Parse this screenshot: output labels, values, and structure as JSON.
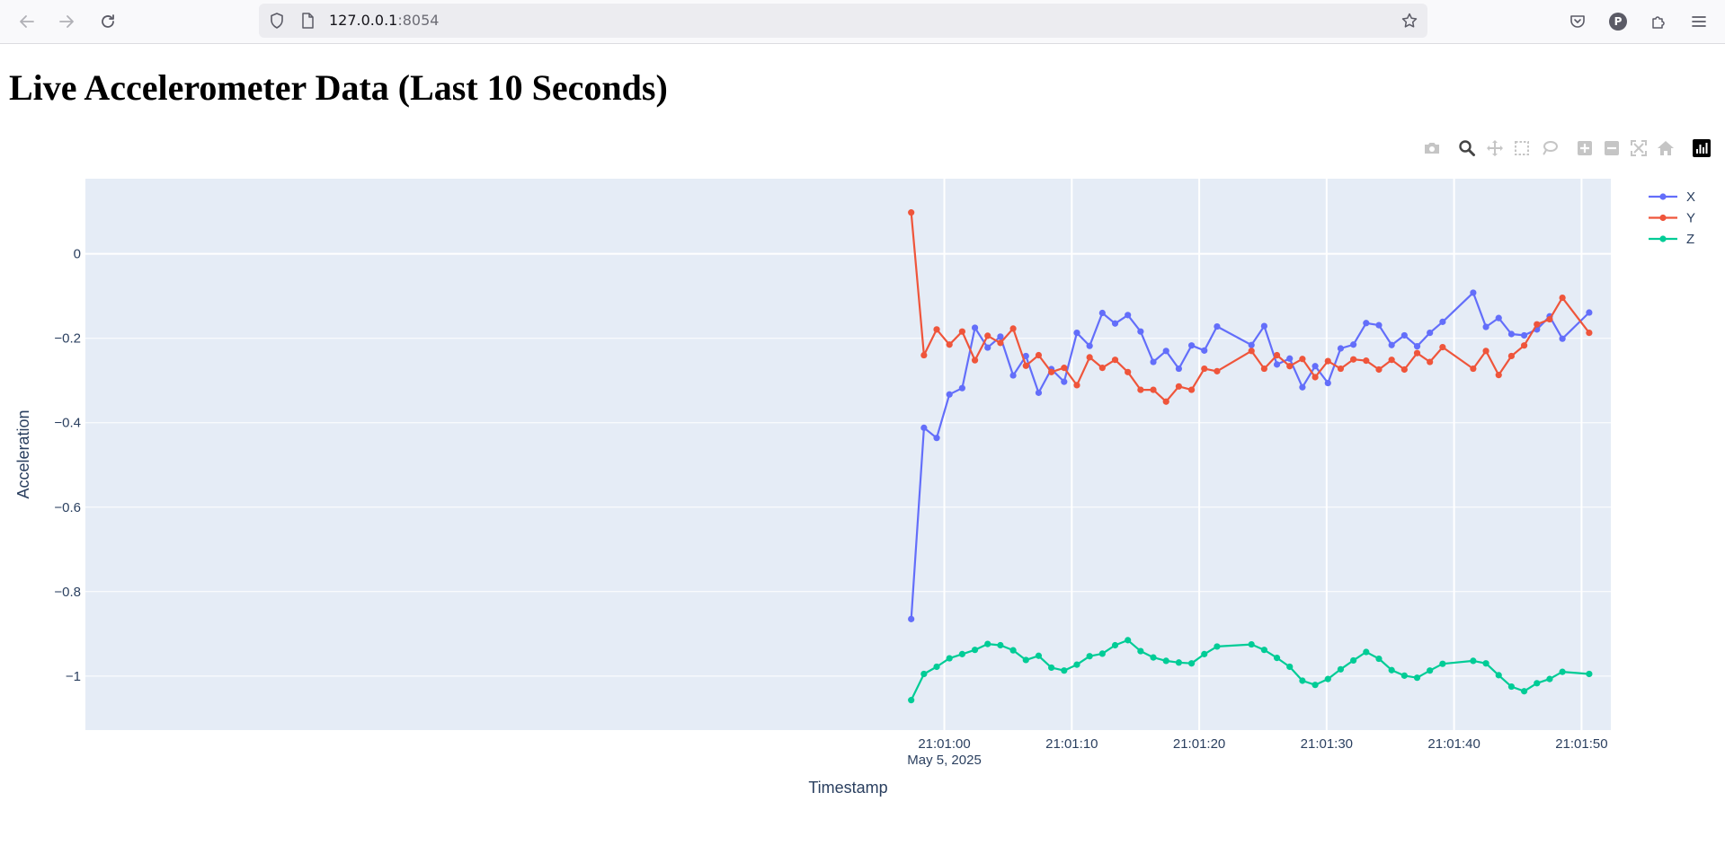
{
  "browser": {
    "url_host": "127.0.0.1",
    "url_port": ":8054",
    "icons": [
      "back-arrow-icon",
      "forward-arrow-icon",
      "reload-icon",
      "shield-icon",
      "page-icon",
      "star-icon",
      "pocket-icon",
      "account-icon",
      "extensions-icon",
      "menu-icon"
    ],
    "account_letter": "P"
  },
  "page": {
    "title": "Live Accelerometer Data (Last 10 Seconds)"
  },
  "modebar": {
    "icons": [
      "camera-icon",
      "zoom-icon",
      "pan-icon",
      "box-select-icon",
      "lasso-icon",
      "zoom-in-icon",
      "zoom-out-icon",
      "autoscale-icon",
      "reset-axes-icon",
      "plotly-logo-icon"
    ]
  },
  "colors": {
    "plot_bg": "#e5ecf6",
    "grid": "#ffffff",
    "axis_text": "#2a3f5f",
    "X": "#636efa",
    "Y": "#ef553b",
    "Z": "#00cc96"
  },
  "chart_data": {
    "type": "line",
    "title": "",
    "xlabel": "Timestamp",
    "ylabel": "Acceleration",
    "x_date": "May 5, 2025",
    "xlim": [
      "20:59:52.6",
      "21:01:52.3"
    ],
    "ylim": [
      -1.128,
      0.178
    ],
    "xticks": [
      "21:01:00",
      "21:01:10",
      "21:01:20",
      "21:01:30",
      "21:01:40",
      "21:01:50"
    ],
    "x_tick_sub": "May 5, 2025",
    "yticks": [
      0,
      -0.2,
      -0.4,
      -0.6,
      -0.8,
      -1
    ],
    "ytick_labels": [
      "0",
      "−0.2",
      "−0.4",
      "−0.6",
      "−0.8",
      "−1"
    ],
    "grid": true,
    "legend_position": "top-right",
    "x": [
      "21:00:57.4",
      "21:00:58.4",
      "21:00:59.4",
      "21:01:00.4",
      "21:01:01.4",
      "21:01:02.4",
      "21:01:03.4",
      "21:01:04.4",
      "21:01:05.4",
      "21:01:06.4",
      "21:01:07.4",
      "21:01:08.4",
      "21:01:09.4",
      "21:01:10.4",
      "21:01:11.4",
      "21:01:12.4",
      "21:01:13.4",
      "21:01:14.4",
      "21:01:15.4",
      "21:01:16.4",
      "21:01:17.4",
      "21:01:18.4",
      "21:01:19.4",
      "21:01:20.4",
      "21:01:21.4",
      "21:01:24.1",
      "21:01:25.1",
      "21:01:26.1",
      "21:01:27.1",
      "21:01:28.1",
      "21:01:29.1",
      "21:01:30.1",
      "21:01:31.1",
      "21:01:32.1",
      "21:01:33.1",
      "21:01:34.1",
      "21:01:35.1",
      "21:01:36.1",
      "21:01:37.1",
      "21:01:38.1",
      "21:01:39.1",
      "21:01:41.5",
      "21:01:42.5",
      "21:01:43.5",
      "21:01:44.5",
      "21:01:45.5",
      "21:01:46.5",
      "21:01:47.5",
      "21:01:48.5",
      "21:01:50.6"
    ],
    "series": [
      {
        "name": "X",
        "values": [
          -0.865,
          -0.412,
          -0.436,
          -0.333,
          -0.318,
          -0.175,
          -0.222,
          -0.196,
          -0.288,
          -0.242,
          -0.329,
          -0.273,
          -0.303,
          -0.187,
          -0.218,
          -0.14,
          -0.165,
          -0.145,
          -0.184,
          -0.256,
          -0.23,
          -0.272,
          -0.217,
          -0.229,
          -0.172,
          -0.216,
          -0.171,
          -0.262,
          -0.248,
          -0.316,
          -0.266,
          -0.306,
          -0.224,
          -0.215,
          -0.164,
          -0.169,
          -0.216,
          -0.193,
          -0.219,
          -0.187,
          -0.161,
          -0.092,
          -0.173,
          -0.152,
          -0.19,
          -0.193,
          -0.179,
          -0.148,
          -0.201,
          -0.139
        ]
      },
      {
        "name": "Y",
        "values": [
          0.098,
          -0.24,
          -0.179,
          -0.215,
          -0.184,
          -0.252,
          -0.194,
          -0.211,
          -0.177,
          -0.265,
          -0.24,
          -0.28,
          -0.27,
          -0.311,
          -0.245,
          -0.27,
          -0.251,
          -0.28,
          -0.322,
          -0.322,
          -0.35,
          -0.314,
          -0.322,
          -0.272,
          -0.278,
          -0.23,
          -0.272,
          -0.24,
          -0.266,
          -0.249,
          -0.292,
          -0.254,
          -0.272,
          -0.25,
          -0.253,
          -0.274,
          -0.251,
          -0.274,
          -0.235,
          -0.256,
          -0.221,
          -0.272,
          -0.23,
          -0.287,
          -0.242,
          -0.217,
          -0.167,
          -0.155,
          -0.104,
          -0.187
        ]
      },
      {
        "name": "Z",
        "values": [
          -1.057,
          -0.995,
          -0.978,
          -0.958,
          -0.948,
          -0.938,
          -0.924,
          -0.927,
          -0.939,
          -0.962,
          -0.952,
          -0.98,
          -0.987,
          -0.973,
          -0.953,
          -0.947,
          -0.927,
          -0.915,
          -0.941,
          -0.956,
          -0.964,
          -0.968,
          -0.97,
          -0.948,
          -0.93,
          -0.925,
          -0.938,
          -0.957,
          -0.978,
          -1.011,
          -1.021,
          -1.007,
          -0.984,
          -0.963,
          -0.943,
          -0.959,
          -0.986,
          -0.999,
          -1.004,
          -0.987,
          -0.971,
          -0.964,
          -0.97,
          -0.998,
          -1.025,
          -1.036,
          -1.017,
          -1.007,
          -0.99,
          -0.995
        ]
      }
    ]
  }
}
